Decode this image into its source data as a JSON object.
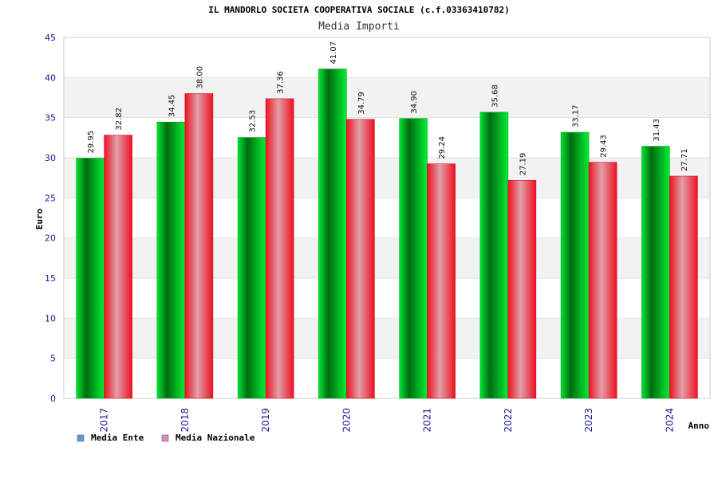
{
  "chart_data": {
    "type": "bar",
    "title": "IL MANDORLO SOCIETA COOPERATIVA SOCIALE (c.f.03363410782)",
    "subtitle": "Media Importi",
    "xlabel": "Anno",
    "ylabel": "Euro",
    "ylim": [
      0,
      45
    ],
    "yticks": [
      0,
      5,
      10,
      15,
      20,
      25,
      30,
      35,
      40,
      45
    ],
    "categories": [
      "2017",
      "2018",
      "2019",
      "2020",
      "2021",
      "2022",
      "2023",
      "2024"
    ],
    "series": [
      {
        "name": "Media Ente",
        "values": [
          29.95,
          34.45,
          32.53,
          41.07,
          34.9,
          35.68,
          33.17,
          31.43
        ],
        "labels": [
          "29.95",
          "34.45",
          "32.53",
          "41.07",
          "34.90",
          "35.68",
          "33.17",
          "31.43"
        ],
        "color": "#00cc22",
        "legend_color": "#5b9bd5"
      },
      {
        "name": "Media Nazionale",
        "values": [
          32.82,
          38.0,
          37.36,
          34.79,
          29.24,
          27.19,
          29.43,
          27.71
        ],
        "labels": [
          "32.82",
          "38.00",
          "37.36",
          "34.79",
          "29.24",
          "27.19",
          "29.43",
          "27.71"
        ],
        "color": "#ee1122",
        "legend_color": "#d98cc6"
      }
    ],
    "grid": true,
    "legend_position": "bottom-left",
    "background_band_color": "#f2f2f2"
  }
}
